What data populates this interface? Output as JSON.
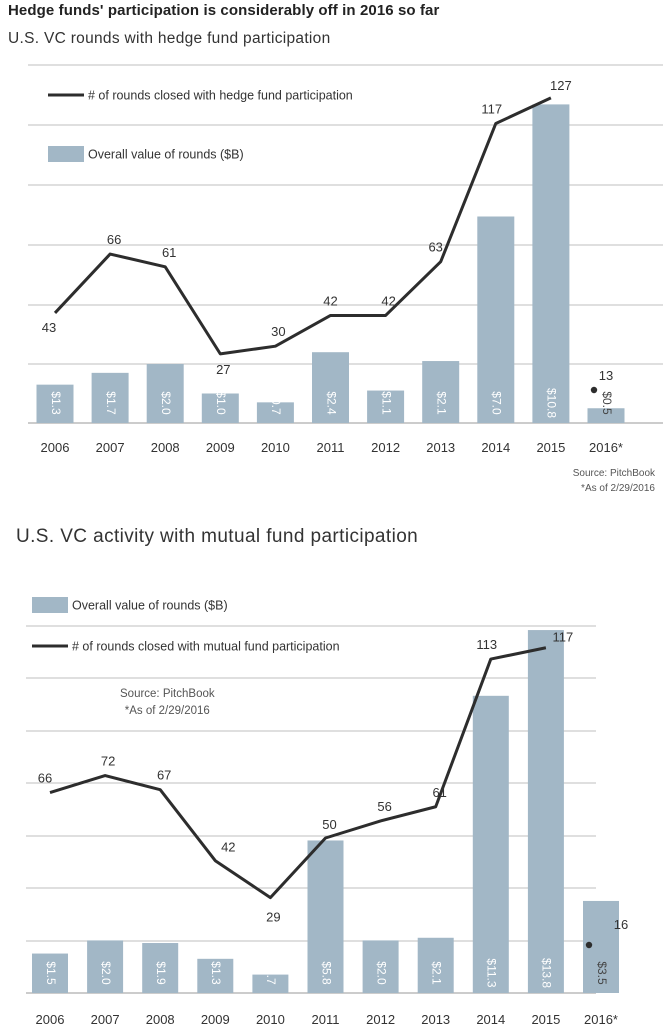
{
  "heading": "Hedge funds' participation is considerably off in 2016 so far",
  "colors": {
    "bar": "#a2b7c6",
    "line": "#2d2d2d",
    "grid": "#bfbfbf",
    "bar_label": "#ffffff"
  },
  "chart_data": [
    {
      "type": "bar",
      "title": "U.S. VC rounds with hedge fund participation",
      "categories": [
        "2006",
        "2007",
        "2008",
        "2009",
        "2010",
        "2011",
        "2012",
        "2013",
        "2014",
        "2015",
        "2016*"
      ],
      "series": [
        {
          "name": "Overall value of rounds ($B)",
          "type": "bar",
          "values": [
            1.3,
            1.7,
            2.0,
            1.0,
            0.7,
            2.4,
            1.1,
            2.1,
            7.0,
            10.8,
            0.5
          ],
          "labels": [
            "$1.3",
            "$1.7",
            "$2.0",
            "$1.0",
            "$0.7",
            "$2.4",
            "$1.1",
            "$2.1",
            "$7.0",
            "$10.8",
            "$0.5"
          ]
        },
        {
          "name": "# of rounds closed with hedge fund participation",
          "type": "line",
          "values": [
            43,
            66,
            61,
            27,
            30,
            42,
            42,
            63,
            117,
            127,
            13
          ],
          "labels": [
            "43",
            "66",
            "61",
            "27",
            "30",
            "42",
            "42",
            "63",
            "117",
            "127",
            "13"
          ]
        }
      ],
      "source": "Source: PitchBook",
      "note": "*As of 2/29/2016"
    },
    {
      "type": "bar",
      "title": "U.S. VC activity with mutual fund participation",
      "categories": [
        "2006",
        "2007",
        "2008",
        "2009",
        "2010",
        "2011",
        "2012",
        "2013",
        "2014",
        "2015",
        "2016*"
      ],
      "series": [
        {
          "name": "Overall value of rounds ($B)",
          "type": "bar",
          "values": [
            1.5,
            2.0,
            1.9,
            1.3,
            0.7,
            5.8,
            2.0,
            2.1,
            11.3,
            13.8,
            3.5
          ],
          "labels": [
            "$1.5",
            "$2.0",
            "$1.9",
            "$1.3",
            "$0.7",
            "$5.8",
            "$2.0",
            "$2.1",
            "$11.3",
            "$13.8",
            "$3.5"
          ]
        },
        {
          "name": "# of rounds closed with mutual fund participation",
          "type": "line",
          "values": [
            66,
            72,
            67,
            42,
            29,
            50,
            56,
            61,
            113,
            117,
            16
          ],
          "labels": [
            "66",
            "72",
            "67",
            "42",
            "29",
            "50",
            "56",
            "61",
            "113",
            "117",
            "16"
          ]
        }
      ],
      "source": "Source: PitchBook",
      "note": "*As of 2/29/2016"
    }
  ]
}
